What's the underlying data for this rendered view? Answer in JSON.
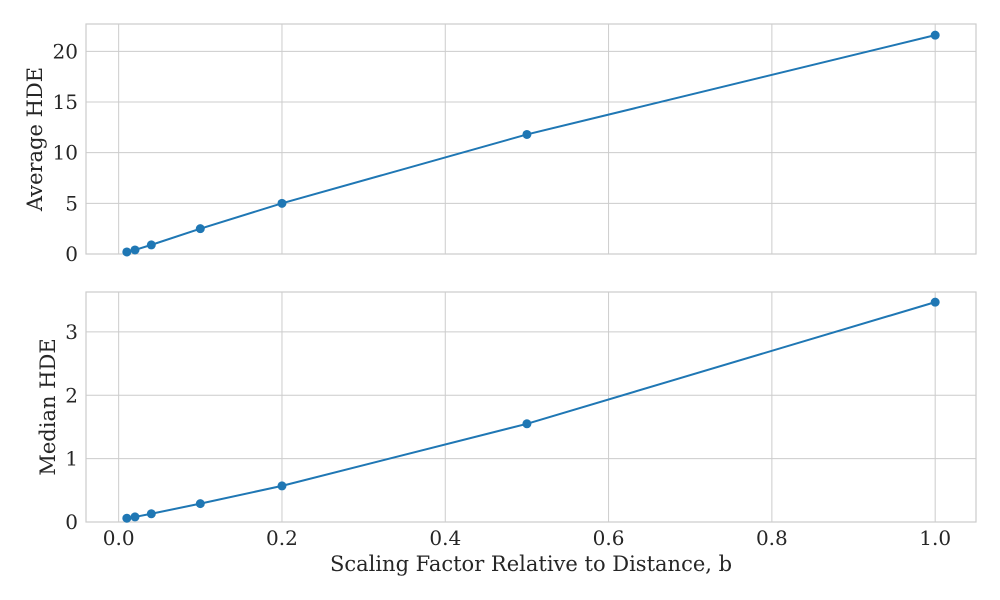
{
  "chart_data": [
    {
      "type": "line",
      "ylabel": "Average HDE",
      "xlabel": "",
      "xlim": [
        -0.04,
        1.05
      ],
      "ylim": [
        0,
        22.7
      ],
      "xticks": [
        0.0,
        0.2,
        0.4,
        0.6,
        0.8,
        1.0
      ],
      "xtick_labels": [],
      "yticks": [
        0,
        5,
        10,
        15,
        20
      ],
      "ytick_labels": [
        "0",
        "5",
        "10",
        "15",
        "20"
      ],
      "grid": true,
      "series": [
        {
          "name": "Average HDE",
          "color": "#1f77b4",
          "x": [
            0.01,
            0.02,
            0.04,
            0.1,
            0.2,
            0.5,
            1.0
          ],
          "y": [
            0.2,
            0.4,
            0.9,
            2.5,
            5.0,
            11.8,
            21.6
          ]
        }
      ]
    },
    {
      "type": "line",
      "ylabel": "Median HDE",
      "xlabel": "Scaling Factor Relative to Distance, b",
      "xlim": [
        -0.04,
        1.05
      ],
      "ylim": [
        0,
        3.63
      ],
      "xticks": [
        0.0,
        0.2,
        0.4,
        0.6,
        0.8,
        1.0
      ],
      "xtick_labels": [
        "0.0",
        "0.2",
        "0.4",
        "0.6",
        "0.8",
        "1.0"
      ],
      "yticks": [
        0,
        1,
        2,
        3
      ],
      "ytick_labels": [
        "0",
        "1",
        "2",
        "3"
      ],
      "grid": true,
      "series": [
        {
          "name": "Median HDE",
          "color": "#1f77b4",
          "x": [
            0.01,
            0.02,
            0.04,
            0.1,
            0.2,
            0.5,
            1.0
          ],
          "y": [
            0.06,
            0.08,
            0.13,
            0.29,
            0.57,
            1.55,
            3.47
          ]
        }
      ]
    }
  ]
}
